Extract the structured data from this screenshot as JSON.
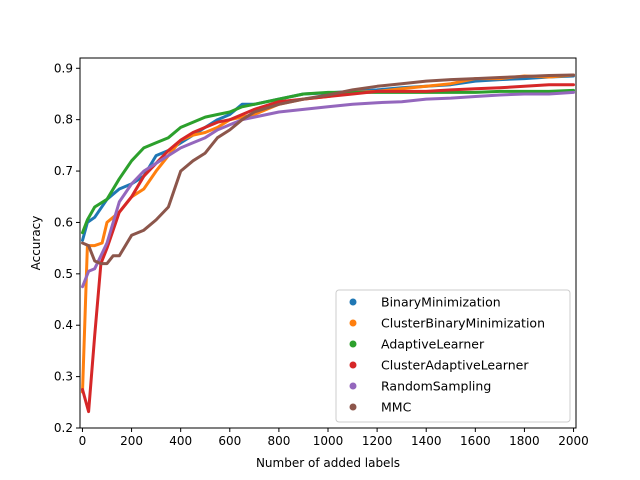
{
  "chart_data": {
    "type": "line",
    "title": "",
    "xlabel": "Number of added labels",
    "ylabel": "Accuracy",
    "xlim": [
      -10,
      2010
    ],
    "ylim": [
      0.2,
      0.92
    ],
    "xticks": [
      0,
      200,
      400,
      600,
      800,
      1000,
      1200,
      1400,
      1600,
      1800,
      2000
    ],
    "yticks": [
      0.2,
      0.3,
      0.4,
      0.5,
      0.6,
      0.7,
      0.8,
      0.9
    ],
    "grid": false,
    "legend_position": "lower-right",
    "series": [
      {
        "name": "BinaryMinimization",
        "color": "#1f77b4",
        "points": [
          [
            0,
            0.565
          ],
          [
            20,
            0.6
          ],
          [
            50,
            0.61
          ],
          [
            100,
            0.645
          ],
          [
            150,
            0.665
          ],
          [
            200,
            0.675
          ],
          [
            250,
            0.69
          ],
          [
            300,
            0.73
          ],
          [
            350,
            0.74
          ],
          [
            400,
            0.755
          ],
          [
            450,
            0.77
          ],
          [
            500,
            0.785
          ],
          [
            550,
            0.8
          ],
          [
            600,
            0.81
          ],
          [
            650,
            0.83
          ],
          [
            700,
            0.83
          ],
          [
            800,
            0.84
          ],
          [
            900,
            0.85
          ],
          [
            1000,
            0.852
          ],
          [
            1100,
            0.855
          ],
          [
            1200,
            0.858
          ],
          [
            1300,
            0.862
          ],
          [
            1400,
            0.865
          ],
          [
            1500,
            0.868
          ],
          [
            1600,
            0.875
          ],
          [
            1700,
            0.878
          ],
          [
            1800,
            0.88
          ],
          [
            1900,
            0.883
          ],
          [
            2000,
            0.885
          ]
        ]
      },
      {
        "name": "ClusterBinaryMinimization",
        "color": "#ff7f0e",
        "points": [
          [
            0,
            0.27
          ],
          [
            20,
            0.555
          ],
          [
            50,
            0.555
          ],
          [
            80,
            0.56
          ],
          [
            100,
            0.6
          ],
          [
            150,
            0.62
          ],
          [
            200,
            0.65
          ],
          [
            250,
            0.665
          ],
          [
            300,
            0.7
          ],
          [
            350,
            0.73
          ],
          [
            400,
            0.76
          ],
          [
            450,
            0.77
          ],
          [
            500,
            0.775
          ],
          [
            550,
            0.785
          ],
          [
            600,
            0.8
          ],
          [
            700,
            0.81
          ],
          [
            800,
            0.83
          ],
          [
            900,
            0.84
          ],
          [
            1000,
            0.845
          ],
          [
            1100,
            0.853
          ],
          [
            1200,
            0.855
          ],
          [
            1300,
            0.86
          ],
          [
            1400,
            0.865
          ],
          [
            1500,
            0.87
          ],
          [
            1600,
            0.88
          ],
          [
            1700,
            0.88
          ],
          [
            1800,
            0.885
          ],
          [
            1900,
            0.883
          ],
          [
            2000,
            0.887
          ]
        ]
      },
      {
        "name": "AdaptiveLearner",
        "color": "#2ca02c",
        "points": [
          [
            0,
            0.58
          ],
          [
            20,
            0.605
          ],
          [
            50,
            0.63
          ],
          [
            100,
            0.645
          ],
          [
            150,
            0.685
          ],
          [
            200,
            0.72
          ],
          [
            250,
            0.745
          ],
          [
            300,
            0.755
          ],
          [
            350,
            0.765
          ],
          [
            400,
            0.785
          ],
          [
            450,
            0.795
          ],
          [
            500,
            0.805
          ],
          [
            550,
            0.81
          ],
          [
            600,
            0.815
          ],
          [
            650,
            0.825
          ],
          [
            700,
            0.83
          ],
          [
            800,
            0.84
          ],
          [
            900,
            0.85
          ],
          [
            1000,
            0.853
          ],
          [
            1100,
            0.853
          ],
          [
            1200,
            0.853
          ],
          [
            1300,
            0.853
          ],
          [
            1400,
            0.853
          ],
          [
            1500,
            0.853
          ],
          [
            1600,
            0.853
          ],
          [
            1700,
            0.855
          ],
          [
            1800,
            0.855
          ],
          [
            1900,
            0.855
          ],
          [
            2000,
            0.857
          ]
        ]
      },
      {
        "name": "ClusterAdaptiveLearner",
        "color": "#d62728",
        "points": [
          [
            0,
            0.275
          ],
          [
            25,
            0.232
          ],
          [
            50,
            0.38
          ],
          [
            75,
            0.52
          ],
          [
            100,
            0.55
          ],
          [
            150,
            0.62
          ],
          [
            200,
            0.65
          ],
          [
            250,
            0.69
          ],
          [
            300,
            0.715
          ],
          [
            350,
            0.74
          ],
          [
            400,
            0.76
          ],
          [
            450,
            0.775
          ],
          [
            500,
            0.785
          ],
          [
            550,
            0.795
          ],
          [
            600,
            0.8
          ],
          [
            700,
            0.82
          ],
          [
            800,
            0.835
          ],
          [
            900,
            0.84
          ],
          [
            1000,
            0.845
          ],
          [
            1100,
            0.85
          ],
          [
            1200,
            0.855
          ],
          [
            1300,
            0.855
          ],
          [
            1400,
            0.855
          ],
          [
            1500,
            0.858
          ],
          [
            1600,
            0.86
          ],
          [
            1700,
            0.862
          ],
          [
            1800,
            0.865
          ],
          [
            1900,
            0.868
          ],
          [
            2000,
            0.868
          ]
        ]
      },
      {
        "name": "RandomSampling",
        "color": "#9467bd",
        "points": [
          [
            0,
            0.475
          ],
          [
            25,
            0.505
          ],
          [
            50,
            0.51
          ],
          [
            100,
            0.56
          ],
          [
            150,
            0.64
          ],
          [
            200,
            0.675
          ],
          [
            250,
            0.7
          ],
          [
            300,
            0.715
          ],
          [
            350,
            0.73
          ],
          [
            400,
            0.745
          ],
          [
            450,
            0.755
          ],
          [
            500,
            0.765
          ],
          [
            550,
            0.78
          ],
          [
            600,
            0.79
          ],
          [
            650,
            0.8
          ],
          [
            700,
            0.805
          ],
          [
            800,
            0.815
          ],
          [
            900,
            0.82
          ],
          [
            1000,
            0.825
          ],
          [
            1100,
            0.83
          ],
          [
            1200,
            0.833
          ],
          [
            1300,
            0.835
          ],
          [
            1400,
            0.84
          ],
          [
            1500,
            0.842
          ],
          [
            1600,
            0.845
          ],
          [
            1700,
            0.848
          ],
          [
            1800,
            0.85
          ],
          [
            1900,
            0.85
          ],
          [
            2000,
            0.853
          ]
        ]
      },
      {
        "name": "MMC",
        "color": "#8c564b",
        "points": [
          [
            0,
            0.56
          ],
          [
            25,
            0.555
          ],
          [
            50,
            0.525
          ],
          [
            75,
            0.52
          ],
          [
            100,
            0.52
          ],
          [
            125,
            0.535
          ],
          [
            150,
            0.535
          ],
          [
            200,
            0.575
          ],
          [
            250,
            0.585
          ],
          [
            300,
            0.605
          ],
          [
            350,
            0.63
          ],
          [
            400,
            0.7
          ],
          [
            450,
            0.72
          ],
          [
            500,
            0.735
          ],
          [
            550,
            0.765
          ],
          [
            600,
            0.78
          ],
          [
            650,
            0.8
          ],
          [
            700,
            0.815
          ],
          [
            800,
            0.83
          ],
          [
            900,
            0.84
          ],
          [
            1000,
            0.848
          ],
          [
            1100,
            0.858
          ],
          [
            1200,
            0.865
          ],
          [
            1300,
            0.87
          ],
          [
            1400,
            0.875
          ],
          [
            1500,
            0.878
          ],
          [
            1600,
            0.88
          ],
          [
            1700,
            0.882
          ],
          [
            1800,
            0.884
          ],
          [
            1900,
            0.886
          ],
          [
            2000,
            0.887
          ]
        ]
      }
    ]
  }
}
